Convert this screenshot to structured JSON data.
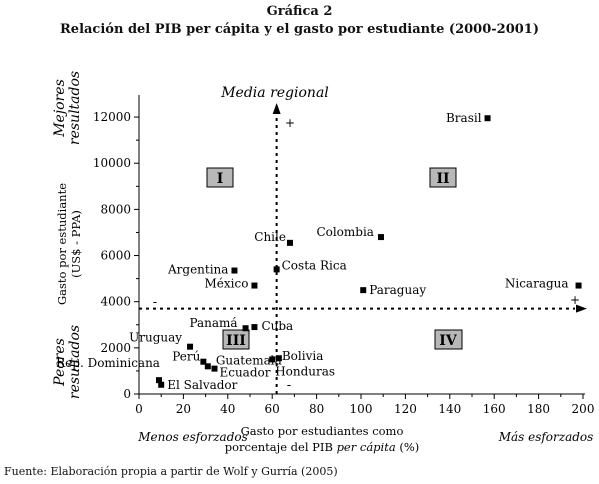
{
  "header": {
    "title": "Gráfica 2",
    "subtitle": "Relación del PIB per cápita y el gasto por estudiante (2000-2001)"
  },
  "footer": {
    "source": "Fuente: Elaboración propia a partir de Wolf y Gurría (2005)"
  },
  "chart_data": {
    "type": "scatter",
    "xlim": [
      0,
      200
    ],
    "ylim": [
      0,
      13000
    ],
    "x_ticks": [
      0,
      20,
      40,
      60,
      80,
      100,
      120,
      140,
      160,
      180,
      200
    ],
    "y_ticks": [
      0,
      2000,
      4000,
      6000,
      8000,
      10000,
      12000
    ],
    "xlabel_line1": "Gasto por estudiantes como",
    "xlabel_line2_prefix": "porcentaje del PIB ",
    "xlabel_line2_italic": "per cápita",
    "xlabel_line2_suffix": " (%)",
    "ylabel_line1": "Gasto por estudiante",
    "ylabel_line2": "(US$ - PPA)",
    "x_left_note": "Menos esforzados",
    "x_right_note": "Más esforzados",
    "y_top_note_line1": "Mejores",
    "y_top_note_line2": "resultados",
    "y_bottom_note_line1": "Peores",
    "y_bottom_note_line2": "resultados",
    "vertical_reference_label": "Media regional",
    "reference_x": 62,
    "reference_y": 3700,
    "plus_markers": [
      "+",
      "+"
    ],
    "minus_markers": [
      "-",
      "-"
    ],
    "quadrants": [
      "I",
      "II",
      "III",
      "IV"
    ],
    "points": [
      {
        "label": "Brasil",
        "x": 157,
        "y": 11950
      },
      {
        "label": "Colombia",
        "x": 109,
        "y": 6800
      },
      {
        "label": "Chile",
        "x": 68,
        "y": 6550
      },
      {
        "label": "Argentina",
        "x": 43,
        "y": 5350
      },
      {
        "label": "Costa Rica",
        "x": 62,
        "y": 5400
      },
      {
        "label": "México",
        "x": 52,
        "y": 4700
      },
      {
        "label": "Paraguay",
        "x": 101,
        "y": 4500
      },
      {
        "label": "Nicaragua",
        "x": 198,
        "y": 4700
      },
      {
        "label": "Panamá",
        "x": 48,
        "y": 2850
      },
      {
        "label": "Cuba",
        "x": 52,
        "y": 2900
      },
      {
        "label": "Uruguay",
        "x": 23,
        "y": 2050
      },
      {
        "label": "Perú",
        "x": 29,
        "y": 1400
      },
      {
        "label": "Guatemala",
        "x": 31,
        "y": 1200
      },
      {
        "label": "Ecuador",
        "x": 34,
        "y": 1100
      },
      {
        "label": "Bolivia",
        "x": 63,
        "y": 1550
      },
      {
        "label": "Honduras",
        "x": 60,
        "y": 1500
      },
      {
        "label": "Rep. Dominicana",
        "x": 9,
        "y": 600
      },
      {
        "label": "El Salvador",
        "x": 10,
        "y": 400
      }
    ]
  }
}
